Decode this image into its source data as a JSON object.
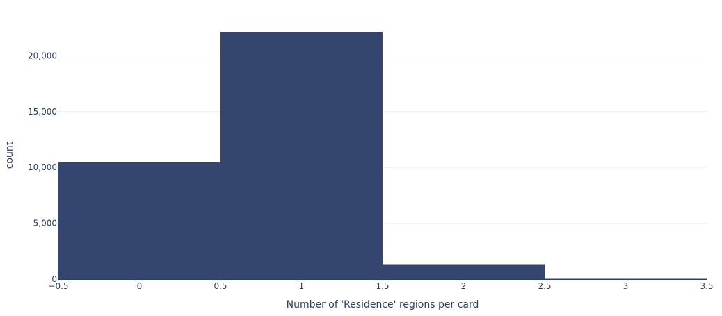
{
  "chart_data": {
    "type": "bar",
    "title": "",
    "xlabel": "Number of 'Residence' regions per card",
    "ylabel": "count",
    "xlim": [
      -0.5,
      3.5
    ],
    "ylim": [
      0,
      22200
    ],
    "x_ticks": [
      -0.5,
      0,
      0.5,
      1,
      1.5,
      2,
      2.5,
      3,
      3.5
    ],
    "x_tick_labels": [
      "−0.5",
      "0",
      "0.5",
      "1",
      "1.5",
      "2",
      "2.5",
      "3",
      "3.5"
    ],
    "y_ticks": [
      0,
      5000,
      10000,
      15000,
      20000
    ],
    "y_tick_labels": [
      "0",
      "5,000",
      "10,000",
      "15,000",
      "20,000"
    ],
    "grid": true,
    "bar_color": "#34466f",
    "bins": [
      {
        "x": 0,
        "x0": -0.5,
        "x1": 0.5,
        "count": 10520
      },
      {
        "x": 1,
        "x0": 0.5,
        "x1": 1.5,
        "count": 22150
      },
      {
        "x": 2,
        "x0": 1.5,
        "x1": 2.5,
        "count": 1330
      },
      {
        "x": 3,
        "x0": 2.5,
        "x1": 3.5,
        "count": 40
      }
    ]
  }
}
